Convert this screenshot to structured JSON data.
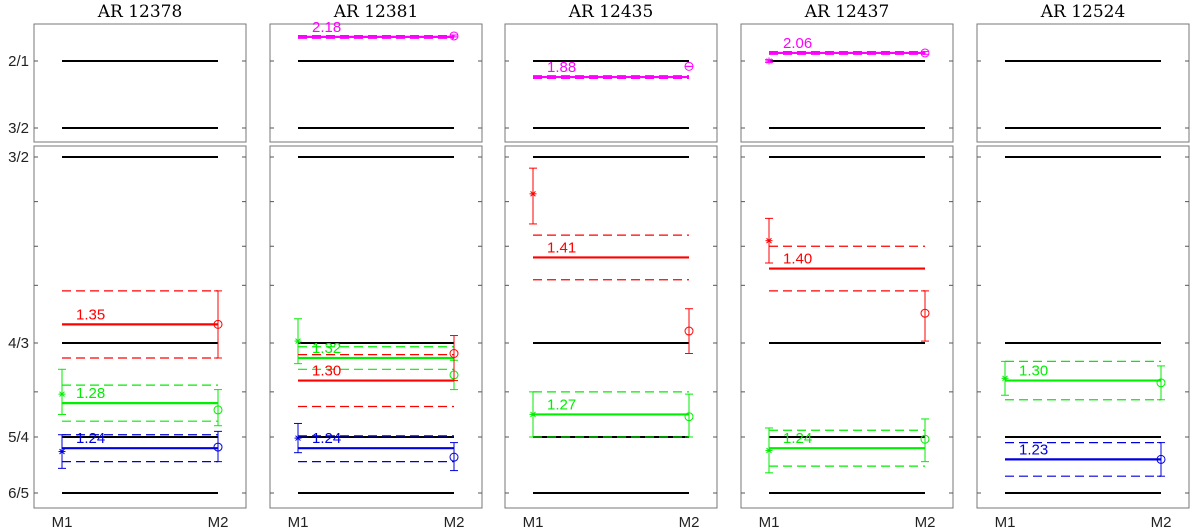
{
  "chart_data": {
    "type": "scatter",
    "description_free": true,
    "panels": [
      {
        "title": "AR 12378",
        "upper_markers": [],
        "series": [
          {
            "color": "#ff0000",
            "label": "1.35",
            "mean": 1.35,
            "band": [
              1.32,
              1.38
            ],
            "m1": null,
            "m2": {
              "v": 1.35,
              "err": [
                1.32,
                1.38
              ]
            }
          },
          {
            "color": "#00ee00",
            "label": "1.28",
            "mean": 1.28,
            "band": [
              1.264,
              1.296
            ],
            "m1": {
              "v": 1.288,
              "err": [
                1.27,
                1.31
              ]
            },
            "m2": {
              "v": 1.274,
              "err": [
                1.26,
                1.292
              ]
            }
          },
          {
            "color": "#0000dd",
            "label": "1.24",
            "mean": 1.24,
            "band": [
              1.228,
              1.252
            ],
            "m1": {
              "v": 1.237,
              "err": [
                1.222,
                1.252
              ]
            },
            "m2": {
              "v": 1.241,
              "err": [
                1.228,
                1.255
              ]
            }
          }
        ]
      },
      {
        "title": "AR 12381",
        "upper_markers": [
          {
            "color": "#ff00ff",
            "label": "2.18",
            "mean": 2.18,
            "band": [
              2.17,
              2.19
            ],
            "m1": null,
            "m2": {
              "v": 2.187,
              "err": [
                2.18,
                2.194
              ]
            }
          }
        ],
        "series": [
          {
            "color": "#00ee00",
            "label": "1.32",
            "mean": 1.32,
            "band": [
              1.31,
              1.33
            ],
            "m1": {
              "v": 1.335,
              "err": [
                1.315,
                1.355
              ]
            },
            "m2": {
              "v": 1.305,
              "err": [
                1.292,
                1.318
              ]
            }
          },
          {
            "color": "#ff0000",
            "label": "1.30",
            "mean": 1.3,
            "band": [
              1.277,
              1.323
            ],
            "m1": null,
            "m2": {
              "v": 1.324,
              "err": [
                1.3,
                1.34
              ]
            }
          },
          {
            "color": "#0000dd",
            "label": "1.24",
            "mean": 1.24,
            "band": [
              1.228,
              1.251
            ],
            "m1": {
              "v": 1.249,
              "err": [
                1.236,
                1.262
              ]
            },
            "m2": {
              "v": 1.232,
              "err": [
                1.22,
                1.245
              ]
            }
          }
        ]
      },
      {
        "title": "AR 12435",
        "upper_markers": [
          {
            "color": "#ff00ff",
            "label": "1.88",
            "mean": 1.88,
            "band": [
              1.87,
              1.89
            ],
            "m1": null,
            "m2": {
              "v": 1.96,
              "err": [
                1.96,
                1.96
              ]
            }
          }
        ],
        "series": [
          {
            "color": "#ff0000",
            "label": "1.41",
            "mean": 1.41,
            "band": [
              1.39,
              1.43
            ],
            "m1": {
              "v": 1.467,
              "err": [
                1.44,
                1.49
              ]
            },
            "m2": {
              "v": 1.344,
              "err": [
                1.324,
                1.364
              ]
            }
          },
          {
            "color": "#00ee00",
            "label": "1.27",
            "mean": 1.27,
            "band": [
              1.25,
              1.29
            ],
            "m1": {
              "v": 1.27,
              "err": [
                1.25,
                1.29
              ]
            },
            "m2": {
              "v": 1.268,
              "err": [
                1.25,
                1.288
              ]
            }
          }
        ]
      },
      {
        "title": "AR 12437",
        "upper_markers": [
          {
            "color": "#ff00ff",
            "label": "2.06",
            "mean": 2.06,
            "band": [
              2.05,
              2.07
            ],
            "m1": {
              "v": 2.0,
              "err": [
                1.99,
                2.01
              ]
            },
            "m2": {
              "v": 2.06,
              "err": [
                2.05,
                2.07
              ]
            }
          }
        ],
        "series": [
          {
            "color": "#ff0000",
            "label": "1.40",
            "mean": 1.4,
            "band": [
              1.38,
              1.42
            ],
            "m1": {
              "v": 1.425,
              "err": [
                1.405,
                1.445
              ]
            },
            "m2": {
              "v": 1.36,
              "err": [
                1.335,
                1.38
              ]
            }
          },
          {
            "color": "#00ee00",
            "label": "1.24",
            "mean": 1.24,
            "band": [
              1.224,
              1.256
            ],
            "m1": {
              "v": 1.238,
              "err": [
                1.218,
                1.258
              ]
            },
            "m2": {
              "v": 1.248,
              "err": [
                1.228,
                1.266
              ]
            }
          }
        ]
      },
      {
        "title": "AR 12524",
        "upper_markers": [],
        "series": [
          {
            "color": "#00ee00",
            "label": "1.30",
            "mean": 1.3,
            "band": [
              1.283,
              1.317
            ],
            "m1": {
              "v": 1.302,
              "err": [
                1.287,
                1.317
              ]
            },
            "m2": {
              "v": 1.298,
              "err": [
                1.283,
                1.313
              ]
            }
          },
          {
            "color": "#0000dd",
            "label": "1.23",
            "mean": 1.23,
            "band": [
              1.215,
              1.245
            ],
            "m1": null,
            "m2": {
              "v": 1.23,
              "err": [
                1.215,
                1.245
              ]
            }
          }
        ]
      }
    ],
    "lower_yticks": [
      {
        "label": "6/5",
        "value": 1.2
      },
      {
        "label": "5/4",
        "value": 1.25
      },
      {
        "label": "4/3",
        "value": 1.3333
      },
      {
        "label": "3/2",
        "value": 1.5
      }
    ],
    "upper_yticks": [
      {
        "label": "3/2",
        "value": 1.5
      },
      {
        "label": "2/1",
        "value": 2.0
      }
    ],
    "xticks": [
      "M1",
      "M2"
    ],
    "lower_ylim": [
      1.19,
      1.51
    ],
    "upper_ylim": [
      1.4,
      2.2
    ],
    "reference_lines_lower": [
      1.2,
      1.25,
      1.3333,
      1.5
    ],
    "reference_lines_upper": [
      1.5,
      2.0
    ]
  }
}
